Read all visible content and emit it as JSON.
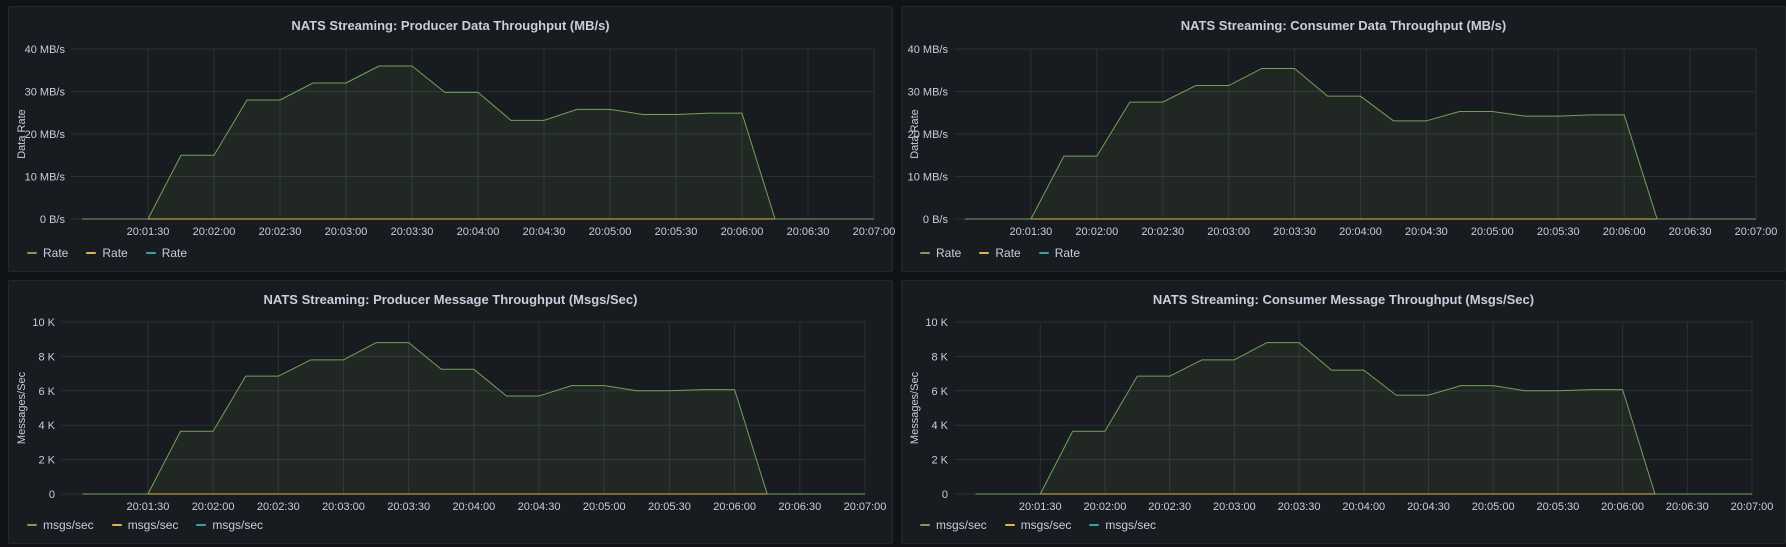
{
  "colors": {
    "primary": "#73a05c",
    "fill": "rgba(115,160,92,0.10)",
    "baseline_a": "#e0b34e",
    "baseline_b": "#2fa5a5",
    "grid": "#2c3036",
    "background": "#111217",
    "panel": "#181b1f"
  },
  "chart_data": [
    {
      "type": "area",
      "title": "NATS Streaming: Producer Data Throughput (MB/s)",
      "ylabel": "Data Rate",
      "xlabel": "",
      "x_ticks": [
        "20:01:30",
        "20:02:00",
        "20:02:30",
        "20:03:00",
        "20:03:30",
        "20:04:00",
        "20:04:30",
        "20:05:00",
        "20:05:30",
        "20:06:00",
        "20:06:30",
        "20:07:00"
      ],
      "y_ticks": [
        "0 B/s",
        "10 MB/s",
        "20 MB/s",
        "30 MB/s",
        "40 MB/s"
      ],
      "ylim": [
        0,
        40
      ],
      "xlim": [
        "20:00:55",
        "20:07:00"
      ],
      "x": [
        "20:01:00",
        "20:01:30",
        "20:01:45",
        "20:02:00",
        "20:02:15",
        "20:02:30",
        "20:02:45",
        "20:03:00",
        "20:03:15",
        "20:03:30",
        "20:03:45",
        "20:04:00",
        "20:04:15",
        "20:04:30",
        "20:04:45",
        "20:05:00",
        "20:05:15",
        "20:05:30",
        "20:05:45",
        "20:06:00",
        "20:06:15",
        "20:06:30",
        "20:07:00"
      ],
      "series": [
        {
          "name": "Rate",
          "color_key": "primary",
          "values": [
            0,
            0,
            15,
            15,
            28,
            28,
            32,
            32,
            36,
            36,
            29.8,
            29.8,
            23.2,
            23.2,
            25.8,
            25.8,
            24.6,
            24.6,
            24.9,
            24.9,
            0,
            0,
            0
          ]
        },
        {
          "name": "Rate",
          "color_key": "baseline_a",
          "values": [
            0,
            0,
            0,
            0,
            0,
            0,
            0,
            0,
            0,
            0,
            0,
            0,
            0,
            0,
            0,
            0,
            0,
            0,
            0,
            0,
            0,
            0,
            0
          ]
        },
        {
          "name": "Rate",
          "color_key": "baseline_b",
          "values": [
            0,
            0,
            0,
            0,
            0,
            0,
            0,
            0,
            0,
            0,
            0,
            0,
            0,
            0,
            0,
            0,
            0,
            0,
            0,
            0,
            0,
            0,
            0
          ]
        }
      ],
      "legend": "bottom"
    },
    {
      "type": "area",
      "title": "NATS Streaming: Consumer Data Throughput (MB/s)",
      "ylabel": "Data Rate",
      "xlabel": "",
      "x_ticks": [
        "20:01:30",
        "20:02:00",
        "20:02:30",
        "20:03:00",
        "20:03:30",
        "20:04:00",
        "20:04:30",
        "20:05:00",
        "20:05:30",
        "20:06:00",
        "20:06:30",
        "20:07:00"
      ],
      "y_ticks": [
        "0 B/s",
        "10 MB/s",
        "20 MB/s",
        "30 MB/s",
        "40 MB/s"
      ],
      "ylim": [
        0,
        40
      ],
      "xlim": [
        "20:00:55",
        "20:07:00"
      ],
      "x": [
        "20:01:00",
        "20:01:30",
        "20:01:45",
        "20:02:00",
        "20:02:15",
        "20:02:30",
        "20:02:45",
        "20:03:00",
        "20:03:15",
        "20:03:30",
        "20:03:45",
        "20:04:00",
        "20:04:15",
        "20:04:30",
        "20:04:45",
        "20:05:00",
        "20:05:15",
        "20:05:30",
        "20:05:45",
        "20:06:00",
        "20:06:15",
        "20:06:30",
        "20:07:00"
      ],
      "series": [
        {
          "name": "Rate",
          "color_key": "primary",
          "values": [
            0,
            0,
            14.8,
            14.8,
            27.5,
            27.5,
            31.4,
            31.4,
            35.4,
            35.4,
            28.9,
            28.9,
            23.1,
            23.1,
            25.3,
            25.3,
            24.2,
            24.2,
            24.5,
            24.5,
            0,
            0,
            0
          ]
        },
        {
          "name": "Rate",
          "color_key": "baseline_a",
          "values": [
            0,
            0,
            0,
            0,
            0,
            0,
            0,
            0,
            0,
            0,
            0,
            0,
            0,
            0,
            0,
            0,
            0,
            0,
            0,
            0,
            0,
            0,
            0
          ]
        },
        {
          "name": "Rate",
          "color_key": "baseline_b",
          "values": [
            0,
            0,
            0,
            0,
            0,
            0,
            0,
            0,
            0,
            0,
            0,
            0,
            0,
            0,
            0,
            0,
            0,
            0,
            0,
            0,
            0,
            0,
            0
          ]
        }
      ],
      "legend": "bottom"
    },
    {
      "type": "area",
      "title": "NATS Streaming: Producer Message Throughput (Msgs/Sec)",
      "ylabel": "Messages/Sec",
      "xlabel": "",
      "x_ticks": [
        "20:01:30",
        "20:02:00",
        "20:02:30",
        "20:03:00",
        "20:03:30",
        "20:04:00",
        "20:04:30",
        "20:05:00",
        "20:05:30",
        "20:06:00",
        "20:06:30",
        "20:07:00"
      ],
      "y_ticks": [
        "0",
        "2 K",
        "4 K",
        "6 K",
        "8 K",
        "10 K"
      ],
      "ylim": [
        0,
        10000
      ],
      "xlim": [
        "20:00:50",
        "20:07:00"
      ],
      "x": [
        "20:01:00",
        "20:01:30",
        "20:01:45",
        "20:02:00",
        "20:02:15",
        "20:02:30",
        "20:02:45",
        "20:03:00",
        "20:03:15",
        "20:03:30",
        "20:03:45",
        "20:04:00",
        "20:04:15",
        "20:04:30",
        "20:04:45",
        "20:05:00",
        "20:05:15",
        "20:05:30",
        "20:05:45",
        "20:06:00",
        "20:06:15",
        "20:06:30",
        "20:07:00"
      ],
      "series": [
        {
          "name": "msgs/sec",
          "color_key": "primary",
          "values": [
            0,
            0,
            3650,
            3650,
            6850,
            6850,
            7800,
            7800,
            8800,
            8800,
            7250,
            7250,
            5700,
            5700,
            6300,
            6300,
            6000,
            6000,
            6070,
            6070,
            0,
            0,
            0
          ]
        },
        {
          "name": "msgs/sec",
          "color_key": "baseline_a",
          "values": [
            0,
            0,
            0,
            0,
            0,
            0,
            0,
            0,
            0,
            0,
            0,
            0,
            0,
            0,
            0,
            0,
            0,
            0,
            0,
            0,
            0,
            0,
            0
          ]
        },
        {
          "name": "msgs/sec",
          "color_key": "baseline_b",
          "values": [
            0,
            0,
            0,
            0,
            0,
            0,
            0,
            0,
            0,
            0,
            0,
            0,
            0,
            0,
            0,
            0,
            0,
            0,
            0,
            0,
            0,
            0,
            0
          ]
        }
      ],
      "legend": "bottom"
    },
    {
      "type": "area",
      "title": "NATS Streaming: Consumer Message Throughput (Msgs/Sec)",
      "ylabel": "Messages/Sec",
      "xlabel": "",
      "x_ticks": [
        "20:01:30",
        "20:02:00",
        "20:02:30",
        "20:03:00",
        "20:03:30",
        "20:04:00",
        "20:04:30",
        "20:05:00",
        "20:05:30",
        "20:06:00",
        "20:06:30",
        "20:07:00"
      ],
      "y_ticks": [
        "0",
        "2 K",
        "4 K",
        "6 K",
        "8 K",
        "10 K"
      ],
      "ylim": [
        0,
        10000
      ],
      "xlim": [
        "20:00:50",
        "20:07:00"
      ],
      "x": [
        "20:01:00",
        "20:01:30",
        "20:01:45",
        "20:02:00",
        "20:02:15",
        "20:02:30",
        "20:02:45",
        "20:03:00",
        "20:03:15",
        "20:03:30",
        "20:03:45",
        "20:04:00",
        "20:04:15",
        "20:04:30",
        "20:04:45",
        "20:05:00",
        "20:05:15",
        "20:05:30",
        "20:05:45",
        "20:06:00",
        "20:06:15",
        "20:06:30",
        "20:07:00"
      ],
      "series": [
        {
          "name": "msgs/sec",
          "color_key": "primary",
          "values": [
            0,
            0,
            3650,
            3650,
            6850,
            6850,
            7800,
            7800,
            8800,
            8800,
            7200,
            7200,
            5750,
            5750,
            6300,
            6300,
            6000,
            6000,
            6070,
            6070,
            0,
            0,
            0
          ]
        },
        {
          "name": "msgs/sec",
          "color_key": "baseline_a",
          "values": [
            0,
            0,
            0,
            0,
            0,
            0,
            0,
            0,
            0,
            0,
            0,
            0,
            0,
            0,
            0,
            0,
            0,
            0,
            0,
            0,
            0,
            0,
            0
          ]
        },
        {
          "name": "msgs/sec",
          "color_key": "baseline_b",
          "values": [
            0,
            0,
            0,
            0,
            0,
            0,
            0,
            0,
            0,
            0,
            0,
            0,
            0,
            0,
            0,
            0,
            0,
            0,
            0,
            0,
            0,
            0,
            0
          ]
        }
      ],
      "legend": "bottom"
    }
  ]
}
